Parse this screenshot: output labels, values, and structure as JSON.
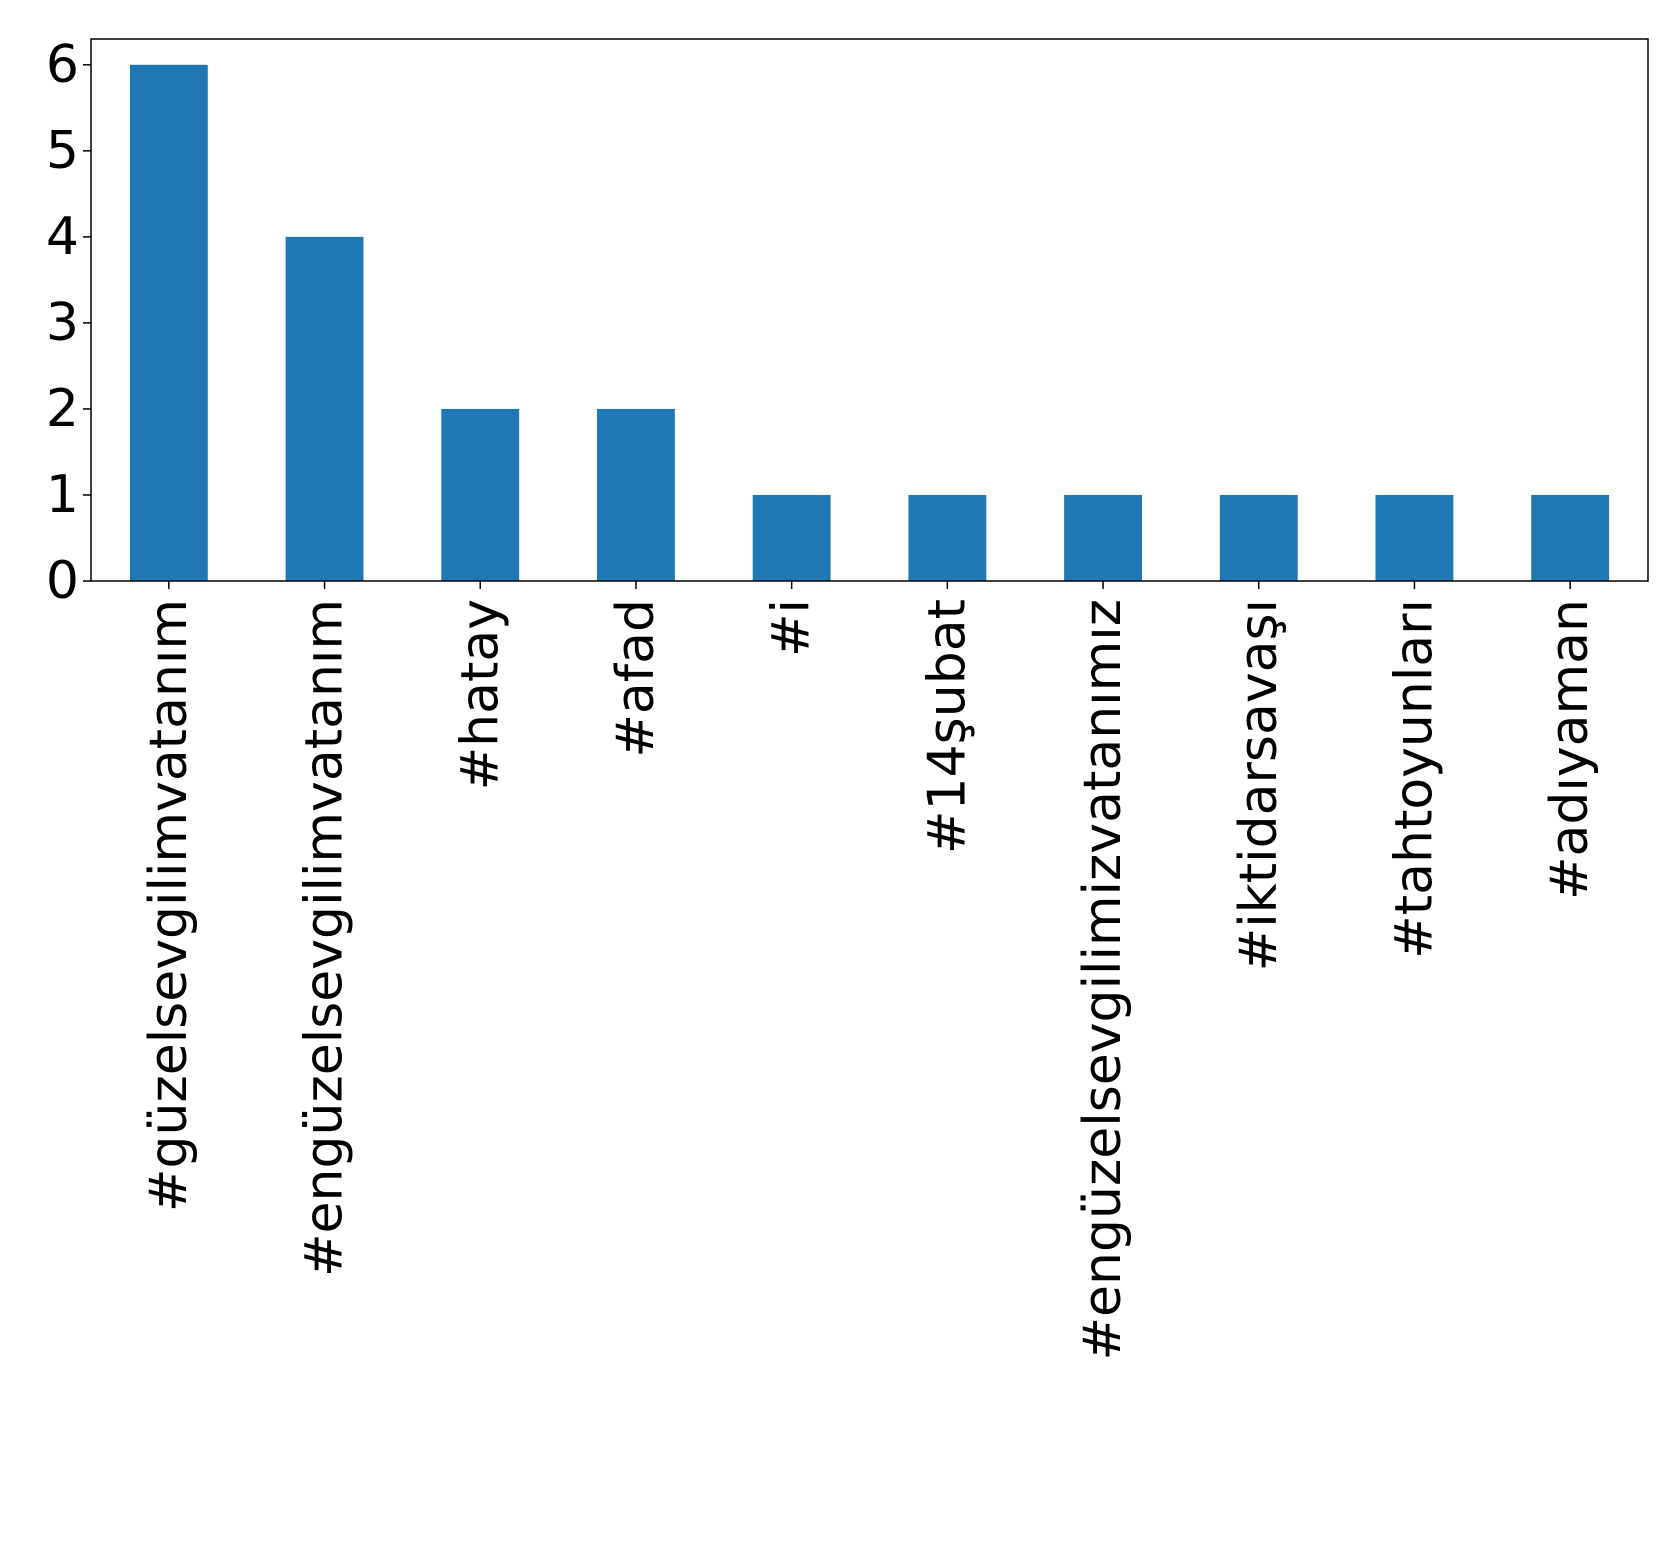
{
  "chart_data": {
    "type": "bar",
    "title": "",
    "xlabel": "",
    "ylabel": "",
    "categories": [
      "#güzelsevgilimvatanım",
      "#engüzelsevgilimvatanım",
      "#hatay",
      "#afad",
      "#i",
      "#14şubat",
      "#engüzelsevgilimizvatanımız",
      "#iktidarsavaşı",
      "#tahtoyunları",
      "#adıyaman"
    ],
    "values": [
      6,
      4,
      2,
      2,
      1,
      1,
      1,
      1,
      1,
      1
    ],
    "ylim": [
      0,
      6.3
    ],
    "yticks": [
      0,
      1,
      2,
      3,
      4,
      5,
      6
    ],
    "grid": false,
    "legend": "none",
    "bar_color": "#1f77b4"
  }
}
